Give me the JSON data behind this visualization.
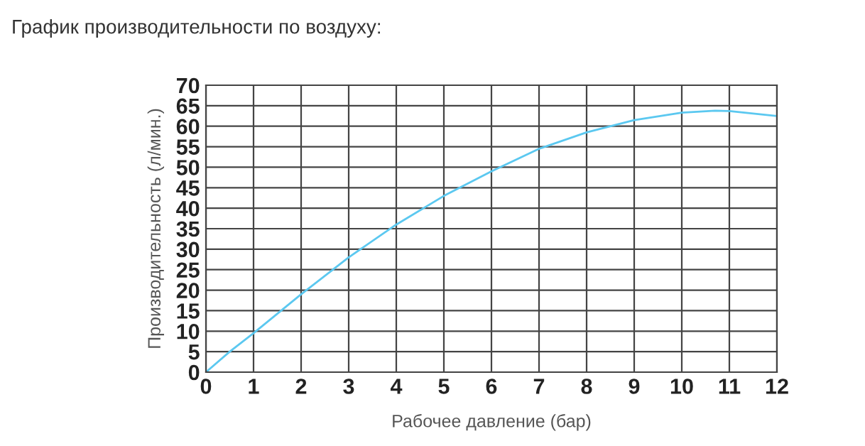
{
  "chart_data": {
    "type": "line",
    "title": "График производительности по воздуху:",
    "xlabel": "Рабочее давление (бар)",
    "ylabel": "Производительность (л/мин.)",
    "x": [
      0,
      0.5,
      1,
      2,
      3,
      4,
      5,
      6,
      7,
      8,
      9,
      10,
      10.7,
      11,
      12
    ],
    "series": [
      {
        "color": "#5bc8f0",
        "values": [
          0,
          5,
          9.5,
          19,
          28,
          36,
          43,
          49,
          54.5,
          58.5,
          61.5,
          63.3,
          63.8,
          63.7,
          62.5
        ]
      }
    ],
    "xlim": [
      0,
      12
    ],
    "ylim": [
      0,
      70
    ],
    "xticks": [
      0,
      1,
      2,
      3,
      4,
      5,
      6,
      7,
      8,
      9,
      10,
      11,
      12
    ],
    "yticks": [
      0,
      5,
      10,
      15,
      20,
      25,
      30,
      35,
      40,
      45,
      50,
      55,
      60,
      65,
      70
    ],
    "grid": true,
    "marker": "none",
    "line_style": "solid"
  }
}
